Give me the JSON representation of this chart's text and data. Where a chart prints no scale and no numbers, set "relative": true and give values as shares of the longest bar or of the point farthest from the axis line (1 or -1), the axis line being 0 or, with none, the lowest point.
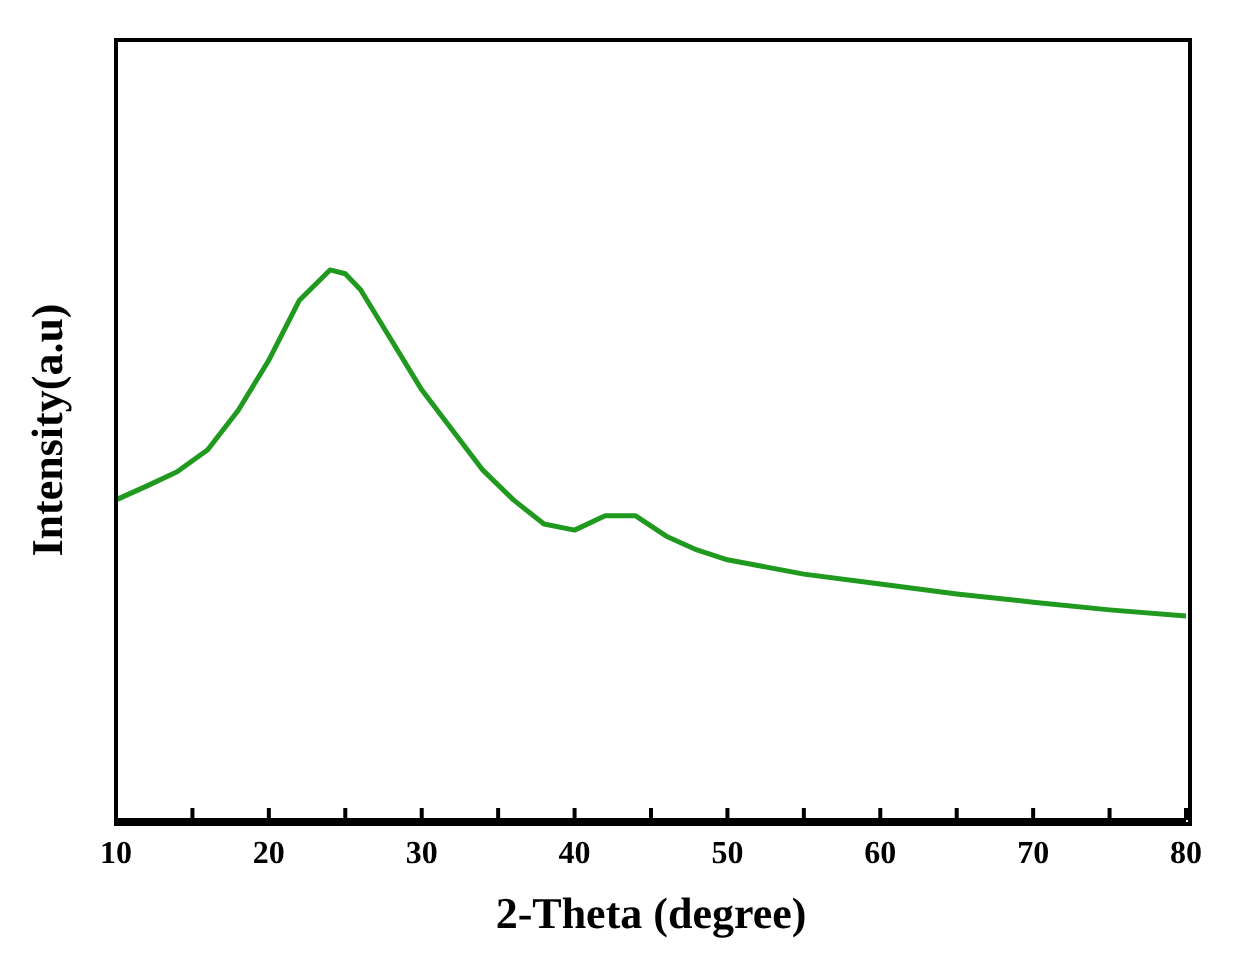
{
  "chart_data": {
    "type": "line",
    "relative": true,
    "xlabel": "2-Theta (degree)",
    "ylabel": "Intensity(a.u)",
    "xlim": [
      10,
      80
    ],
    "xticks": [
      10,
      {
        "value": 15,
        "label": null
      },
      20,
      {
        "value": 25,
        "label": null
      },
      30,
      {
        "value": 35,
        "label": null
      },
      40,
      {
        "value": 45,
        "label": null
      },
      50,
      {
        "value": 55,
        "label": null
      },
      60,
      {
        "value": 65,
        "label": null
      },
      70,
      {
        "value": 75,
        "label": null
      },
      80
    ],
    "x": [
      10,
      12,
      14,
      16,
      18,
      20,
      22,
      24,
      25,
      26,
      28,
      30,
      32,
      34,
      36,
      38,
      40,
      42,
      44,
      46,
      48,
      50,
      55,
      60,
      65,
      70,
      75,
      80
    ],
    "series": [
      {
        "color": "#1f9a1f",
        "values": [
          0.582,
          0.607,
          0.633,
          0.673,
          0.745,
          0.836,
          0.945,
          1,
          0.993,
          0.964,
          0.873,
          0.782,
          0.709,
          0.636,
          0.582,
          0.538,
          0.527,
          0.553,
          0.553,
          0.516,
          0.491,
          0.473,
          0.447,
          0.429,
          0.411,
          0.396,
          0.382,
          0.371
        ]
      }
    ],
    "marker": "none",
    "line_style": "solid"
  }
}
